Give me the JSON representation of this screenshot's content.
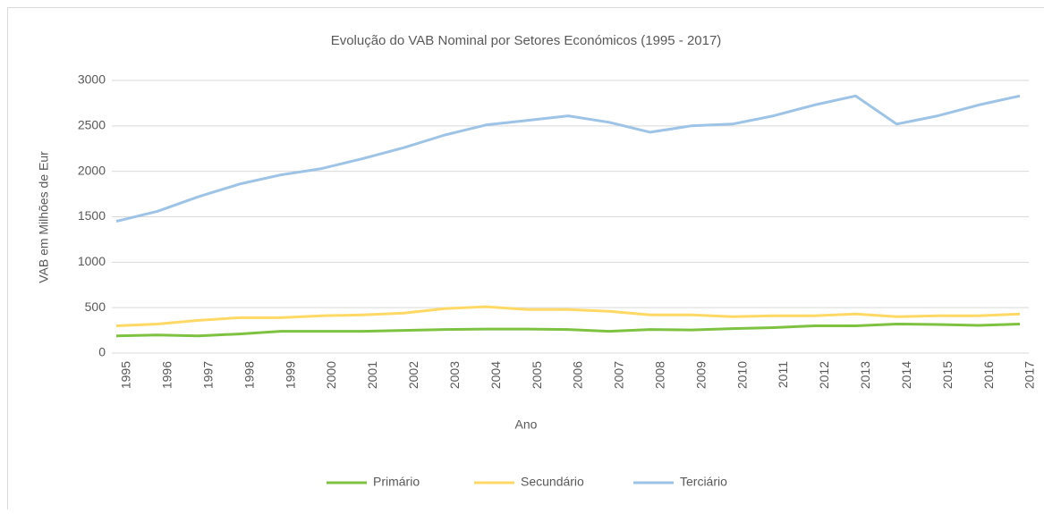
{
  "chart_data": {
    "type": "line",
    "title": "Evolução do VAB Nominal por Setores Económicos (1995 - 2017)",
    "x_label": "Ano",
    "y_label": "VAB em Milhões de Eur",
    "categories": [
      "1995",
      "1996",
      "1997",
      "1998",
      "1999",
      "2000",
      "2001",
      "2002",
      "2003",
      "2004",
      "2005",
      "2006",
      "2007",
      "2008",
      "2009",
      "2010",
      "2011",
      "2012",
      "2013",
      "2014",
      "2015",
      "2016",
      "2017"
    ],
    "series": [
      {
        "name": "Primário",
        "color": "#7ec242",
        "values": [
          190,
          200,
          190,
          210,
          240,
          240,
          240,
          250,
          260,
          265,
          265,
          260,
          240,
          260,
          255,
          270,
          280,
          300,
          300,
          320,
          315,
          305,
          320
        ]
      },
      {
        "name": "Secundário",
        "color": "#ffd966",
        "values": [
          300,
          320,
          360,
          390,
          390,
          410,
          420,
          440,
          490,
          510,
          480,
          480,
          460,
          420,
          420,
          400,
          410,
          410,
          430,
          400,
          410,
          410,
          430
        ]
      },
      {
        "name": "Terciário",
        "color": "#9dc3e6",
        "values": [
          1450,
          1560,
          1720,
          1860,
          1960,
          2030,
          2140,
          2260,
          2400,
          2510,
          2560,
          2610,
          2540,
          2430,
          2500,
          2520,
          2610,
          2730,
          2830,
          2520,
          2610,
          2730,
          2830
        ]
      }
    ],
    "ylim": [
      0,
      3000
    ],
    "yticks": [
      0,
      500,
      1000,
      1500,
      2000,
      2500,
      3000
    ],
    "grid": true,
    "legend": "bottom"
  }
}
